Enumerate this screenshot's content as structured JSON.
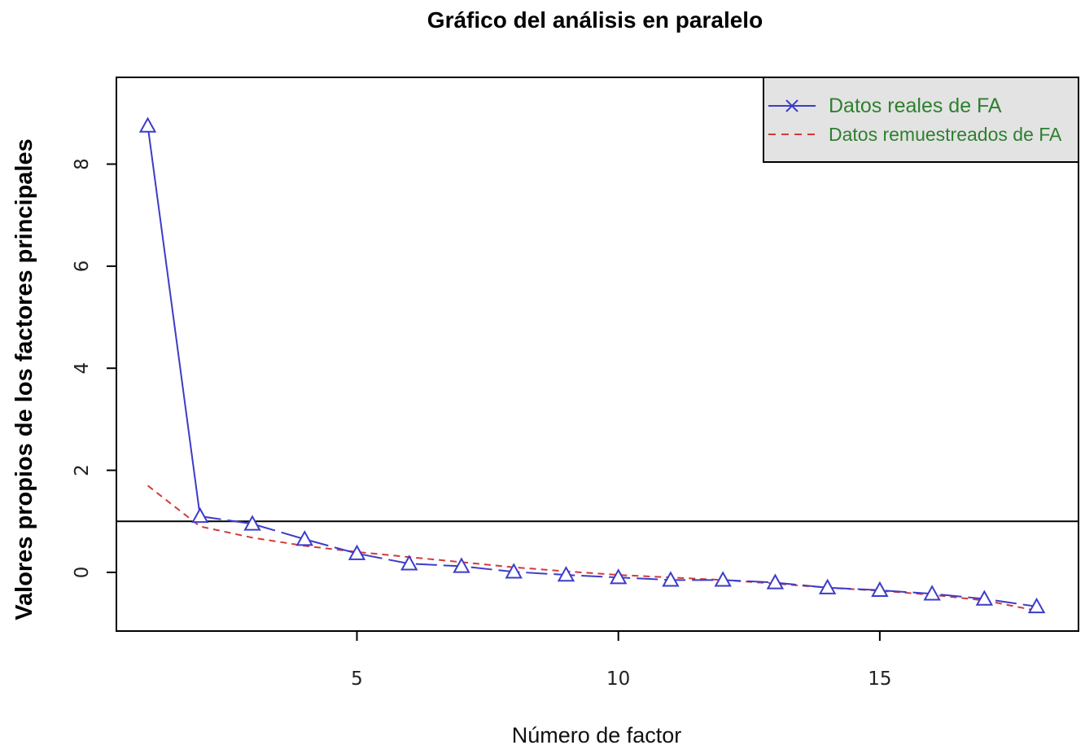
{
  "chart_data": {
    "type": "line",
    "title": "Gráfico del análisis en paralelo",
    "xlabel": "Número de factor",
    "ylabel": "Valores propios de los factores principales",
    "xlim": [
      0.4,
      18.8
    ],
    "ylim": [
      -1.15,
      9.7
    ],
    "x_ticks": [
      5,
      10,
      15
    ],
    "y_ticks": [
      0,
      2,
      4,
      6,
      8
    ],
    "x": [
      1,
      2,
      3,
      4,
      5,
      6,
      7,
      8,
      9,
      10,
      11,
      12,
      13,
      14,
      15,
      16,
      17,
      18
    ],
    "series": [
      {
        "name": "Datos reales de FA",
        "color": "#3c3cc8",
        "line_style": "solid-then-dashed",
        "marker": "triangle",
        "values": [
          8.75,
          1.1,
          0.95,
          0.65,
          0.37,
          0.17,
          0.12,
          0.01,
          -0.05,
          -0.1,
          -0.15,
          -0.15,
          -0.2,
          -0.3,
          -0.35,
          -0.42,
          -0.52,
          -0.67
        ]
      },
      {
        "name": "Datos remuestreados de FA",
        "color": "#d23a3a",
        "line_style": "dashed",
        "marker": "none",
        "values": [
          1.7,
          0.9,
          0.68,
          0.52,
          0.4,
          0.3,
          0.2,
          0.1,
          0.02,
          -0.05,
          -0.1,
          -0.15,
          -0.22,
          -0.3,
          -0.36,
          -0.44,
          -0.55,
          -0.75
        ]
      }
    ],
    "reference_line": {
      "y": 1,
      "color": "#000000"
    },
    "grid": false,
    "legend": {
      "position": "top-right",
      "background": "#e3e3e3",
      "text_color": "#2f7f2f"
    }
  }
}
